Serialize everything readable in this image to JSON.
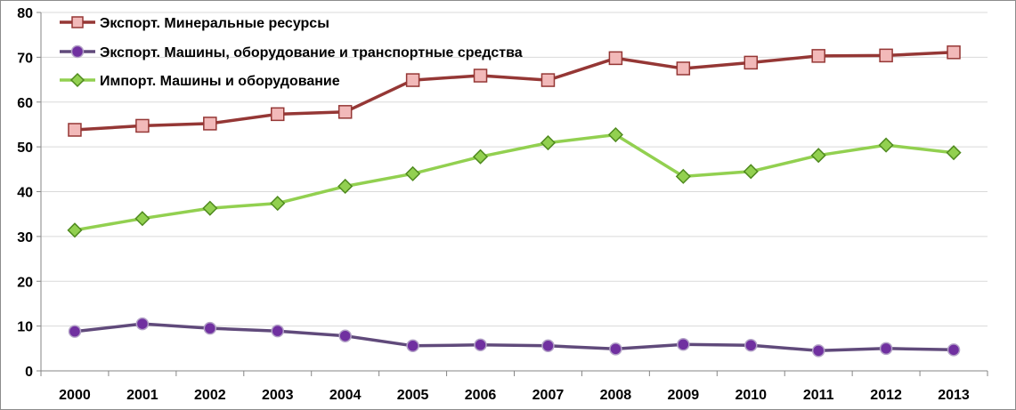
{
  "chart_data": {
    "type": "line",
    "title": "",
    "xlabel": "",
    "ylabel": "",
    "categories": [
      "2000",
      "2001",
      "2002",
      "2003",
      "2004",
      "2005",
      "2006",
      "2007",
      "2008",
      "2009",
      "2010",
      "2011",
      "2012",
      "2013"
    ],
    "ylim": [
      0,
      80
    ],
    "yticks": [
      "0",
      "10",
      "20",
      "30",
      "40",
      "50",
      "60",
      "70",
      "80"
    ],
    "grid": true,
    "legend_position": "top-left",
    "series": [
      {
        "name": "Экспорт. Минеральные ресурсы",
        "color": "#953735",
        "marker_fill": "#f2b9b9",
        "marker": "square",
        "values": [
          53.8,
          54.7,
          55.2,
          57.3,
          57.8,
          64.9,
          65.9,
          64.9,
          69.8,
          67.5,
          68.8,
          70.3,
          70.4,
          71.1
        ]
      },
      {
        "name": "Экспорт. Машины, оборудование и транспортные средства",
        "color": "#604a7b",
        "marker_fill": "#7030a0",
        "marker": "circle",
        "values": [
          8.8,
          10.5,
          9.5,
          8.9,
          7.8,
          5.6,
          5.8,
          5.6,
          4.9,
          5.9,
          5.7,
          4.5,
          5.0,
          4.7
        ]
      },
      {
        "name": "Импорт. Машины и оборудование",
        "color": "#92d050",
        "marker_fill": "#92d050",
        "marker": "diamond",
        "values": [
          31.4,
          34.0,
          36.3,
          37.4,
          41.2,
          44.0,
          47.8,
          50.9,
          52.7,
          43.4,
          44.5,
          48.1,
          50.4,
          48.7
        ]
      }
    ]
  }
}
